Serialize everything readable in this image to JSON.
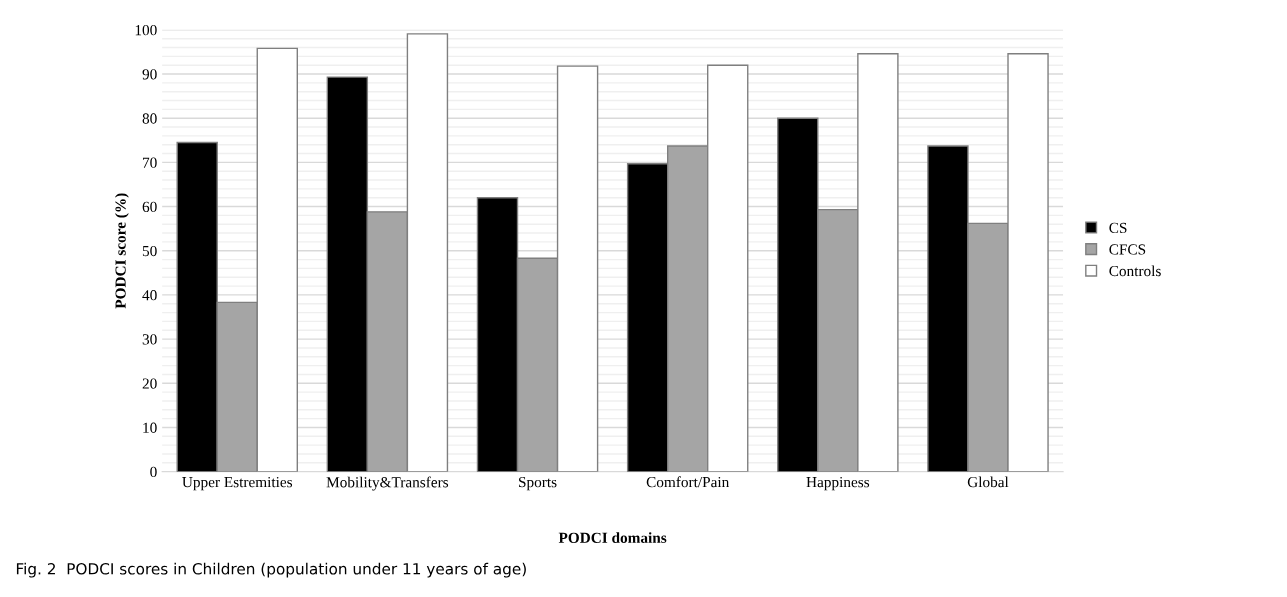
{
  "chart_data": {
    "type": "bar",
    "xlabel": "PODCI domains",
    "ylabel": "PODCI score (%)",
    "categories": [
      "Upper Estremities",
      "Mobility&Transfers",
      "Sports",
      "Comfort/Pain",
      "Happiness",
      "Global"
    ],
    "series": [
      {
        "name": "CS",
        "color": "#000000",
        "values": [
          74.5,
          89.3,
          62,
          69.7,
          80,
          73.7
        ]
      },
      {
        "name": "CFCS",
        "color": "#a5a5a5",
        "values": [
          38.3,
          58.8,
          48.3,
          73.7,
          59.3,
          56.2
        ]
      },
      {
        "name": "Controls",
        "color": "#ffffff",
        "values": [
          95.8,
          99.1,
          91.8,
          92,
          94.6,
          94.6
        ]
      }
    ],
    "ylim": [
      0,
      100
    ],
    "yticks": [
      0,
      {
        "value": 2,
        "label": null
      },
      {
        "value": 4,
        "label": null
      },
      {
        "value": 6,
        "label": null
      },
      {
        "value": 8,
        "label": null
      },
      10,
      {
        "value": 12,
        "label": null
      },
      {
        "value": 14,
        "label": null
      },
      {
        "value": 16,
        "label": null
      },
      {
        "value": 18,
        "label": null
      },
      20,
      {
        "value": 22,
        "label": null
      },
      {
        "value": 24,
        "label": null
      },
      {
        "value": 26,
        "label": null
      },
      {
        "value": 28,
        "label": null
      },
      30,
      {
        "value": 32,
        "label": null
      },
      {
        "value": 34,
        "label": null
      },
      {
        "value": 36,
        "label": null
      },
      {
        "value": 38,
        "label": null
      },
      40,
      {
        "value": 42,
        "label": null
      },
      {
        "value": 44,
        "label": null
      },
      {
        "value": 46,
        "label": null
      },
      {
        "value": 48,
        "label": null
      },
      50,
      {
        "value": 52,
        "label": null
      },
      {
        "value": 54,
        "label": null
      },
      {
        "value": 56,
        "label": null
      },
      {
        "value": 58,
        "label": null
      },
      60,
      {
        "value": 62,
        "label": null
      },
      {
        "value": 64,
        "label": null
      },
      {
        "value": 66,
        "label": null
      },
      {
        "value": 68,
        "label": null
      },
      70,
      {
        "value": 72,
        "label": null
      },
      {
        "value": 74,
        "label": null
      },
      {
        "value": 76,
        "label": null
      },
      {
        "value": 78,
        "label": null
      },
      80,
      {
        "value": 82,
        "label": null
      },
      {
        "value": 84,
        "label": null
      },
      {
        "value": 86,
        "label": null
      },
      {
        "value": 88,
        "label": null
      },
      90,
      {
        "value": 92,
        "label": null
      },
      {
        "value": 94,
        "label": null
      },
      {
        "value": 96,
        "label": null
      },
      {
        "value": 98,
        "label": null
      },
      100
    ],
    "grid": "y",
    "legend": "right",
    "annotations": [
      "Fig. 2  PODCI scores in Children (population under 11 years of age)"
    ]
  }
}
